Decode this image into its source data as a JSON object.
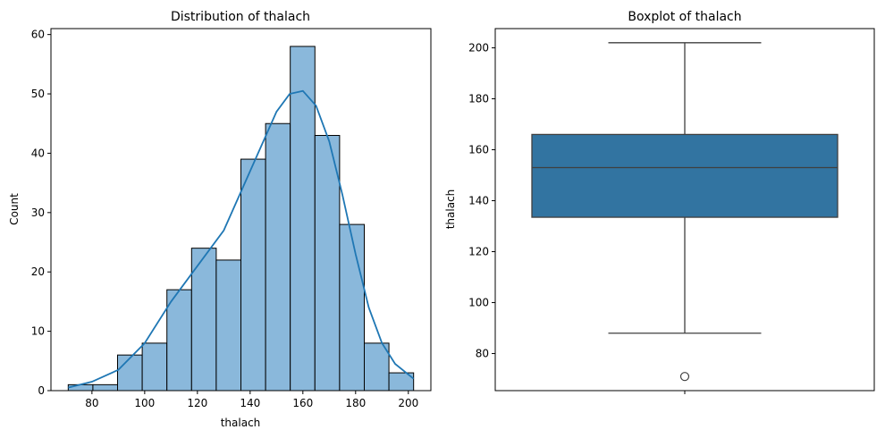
{
  "chart_data": [
    {
      "type": "bar",
      "subtype": "histogram",
      "title": "Distribution of thalach",
      "xlabel": "thalach",
      "ylabel": "Count",
      "bin_edges": [
        71,
        80.36,
        89.71,
        99.07,
        108.43,
        117.79,
        127.14,
        136.5,
        145.86,
        155.21,
        164.57,
        173.93,
        183.29,
        192.64,
        202
      ],
      "values": [
        1,
        1,
        6,
        8,
        17,
        24,
        22,
        39,
        45,
        58,
        43,
        28,
        8,
        3
      ],
      "xlim": [
        64.45,
        208.55
      ],
      "ylim": [
        0,
        61
      ],
      "xticks": [
        80,
        100,
        120,
        140,
        160,
        180,
        200
      ],
      "yticks": [
        0,
        10,
        20,
        30,
        40,
        50,
        60
      ],
      "kde": {
        "x": [
          71,
          80,
          90,
          100,
          110,
          120,
          130,
          140,
          150,
          155,
          160,
          165,
          170,
          175,
          180,
          185,
          190,
          195,
          202
        ],
        "y": [
          0.5,
          1.5,
          3.5,
          8,
          15,
          21,
          27,
          37,
          47,
          50,
          50.5,
          48,
          42,
          33,
          23,
          14,
          8,
          4.5,
          2
        ]
      },
      "bar_color": "#8ab8db",
      "line_color": "#1f77b4",
      "grid": false
    },
    {
      "type": "boxplot",
      "title": "Boxplot of thalach",
      "ylabel": "thalach",
      "whisker_low": 88,
      "q1": 133.5,
      "median": 153,
      "q3": 166,
      "whisker_high": 202,
      "outliers": [
        71
      ],
      "ylim": [
        65.45,
        207.55
      ],
      "yticks": [
        80,
        100,
        120,
        140,
        160,
        180,
        200
      ],
      "box_color": "#3274a1",
      "grid": false
    }
  ]
}
